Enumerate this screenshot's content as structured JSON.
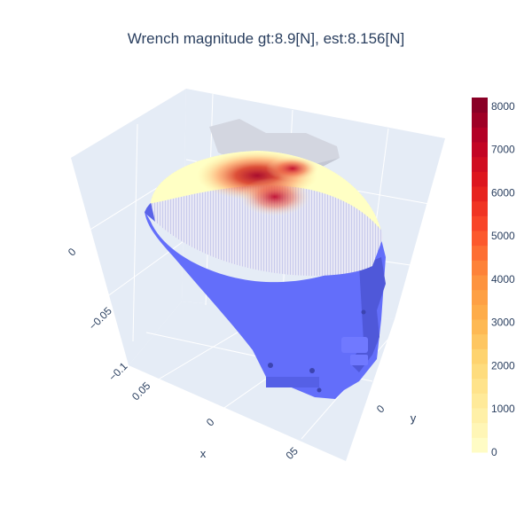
{
  "title": "Wrench magnitude gt:8.9[N], est:8.156[N]",
  "chart_data": {
    "type": "scatter3d",
    "title": "Wrench magnitude gt:8.9[N], est:8.156[N]",
    "axes": {
      "x": {
        "label": "x",
        "ticks": [
          "0.05",
          "0",
          "05"
        ]
      },
      "y": {
        "label": "y",
        "ticks": [
          "0"
        ]
      },
      "z": {
        "label": "",
        "ticks": [
          "0",
          "−0.05",
          "−0.1"
        ]
      }
    },
    "colorbar": {
      "colorscale": "YlOrRd",
      "range": [
        0,
        8200
      ],
      "ticks": [
        0,
        1000,
        2000,
        3000,
        4000,
        5000,
        6000,
        7000,
        8000
      ],
      "colors": [
        "#ffffcc",
        "#ffeda0",
        "#fed976",
        "#feb24c",
        "#fd8d3c",
        "#fc4e2a",
        "#e31a1c",
        "#bd0026",
        "#800026"
      ]
    },
    "mesh_color": "#636efa",
    "hotspot": {
      "peak_value": 8200,
      "location": "upper dome, near top edge"
    }
  }
}
